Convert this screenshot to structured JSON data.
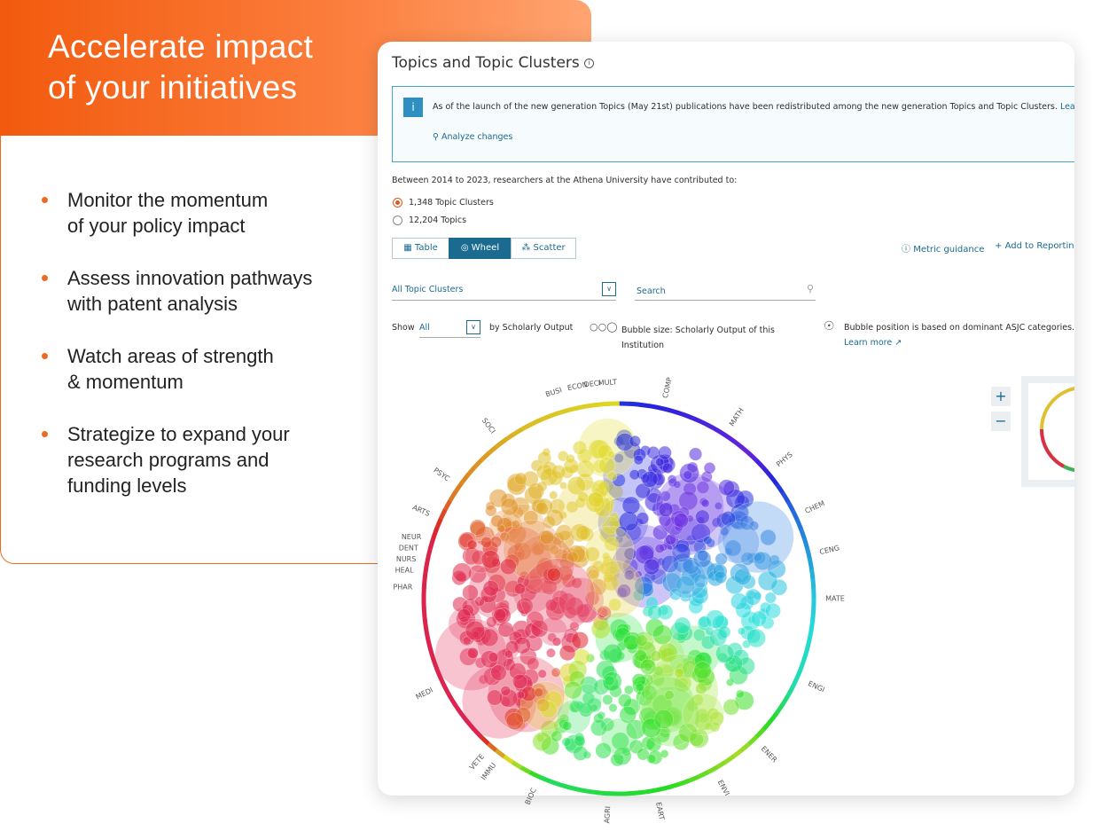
{
  "hero": {
    "title_lines": [
      "Accelerate impact",
      "of your initiatives"
    ]
  },
  "bullets": [
    [
      "Monitor the momentum",
      "of your policy impact"
    ],
    [
      "Assess innovation pathways",
      "with patent analysis"
    ],
    [
      "Watch areas of strength",
      "& momentum"
    ],
    [
      "Strategize to expand your",
      "research programs and",
      "funding levels"
    ]
  ],
  "panel": {
    "title": "Topics and Topic Clusters",
    "banner": {
      "icon": "i",
      "text": "As of the launch of the new generation Topics (May 21st) publications have been redistributed among the new generation Topics and Topic Clusters.",
      "link": "Learn mo",
      "action": "Analyze changes"
    },
    "intro": "Between 2014 to 2023, researchers at the Athena University have contributed to:",
    "radios": [
      "1,348 Topic Clusters",
      "12,204 Topics"
    ],
    "tabs": [
      "Table",
      "Wheel",
      "Scatter"
    ],
    "links": [
      "Metric guidance",
      "Add to Reporting"
    ],
    "filter": "All Topic Clusters",
    "search": "Search",
    "show": {
      "label": "Show",
      "value": "All",
      "suffix": "by Scholarly Output"
    },
    "bubble_size": [
      "Bubble size: Scholarly Output of this",
      "Institution"
    ],
    "bubble_position": "Bubble position is based on dominant ASJC categories.",
    "learn_more": "Learn more ↗",
    "zoom": [
      "+",
      "−"
    ],
    "wheel_labels": [
      "BUSI",
      "ECON",
      "DECI",
      "MULT",
      "COMP",
      "MATH",
      "PHYS",
      "CHEM",
      "CENG",
      "MATE",
      "ENGI",
      "ENER",
      "ENVI",
      "EART",
      "AGRI",
      "BIOC",
      "IMMU",
      "VETE",
      "MEDI",
      "PHAR",
      "HEAL",
      "NURS",
      "DENT",
      "NEUR",
      "ARTS",
      "PSYC",
      "SOCI"
    ]
  }
}
